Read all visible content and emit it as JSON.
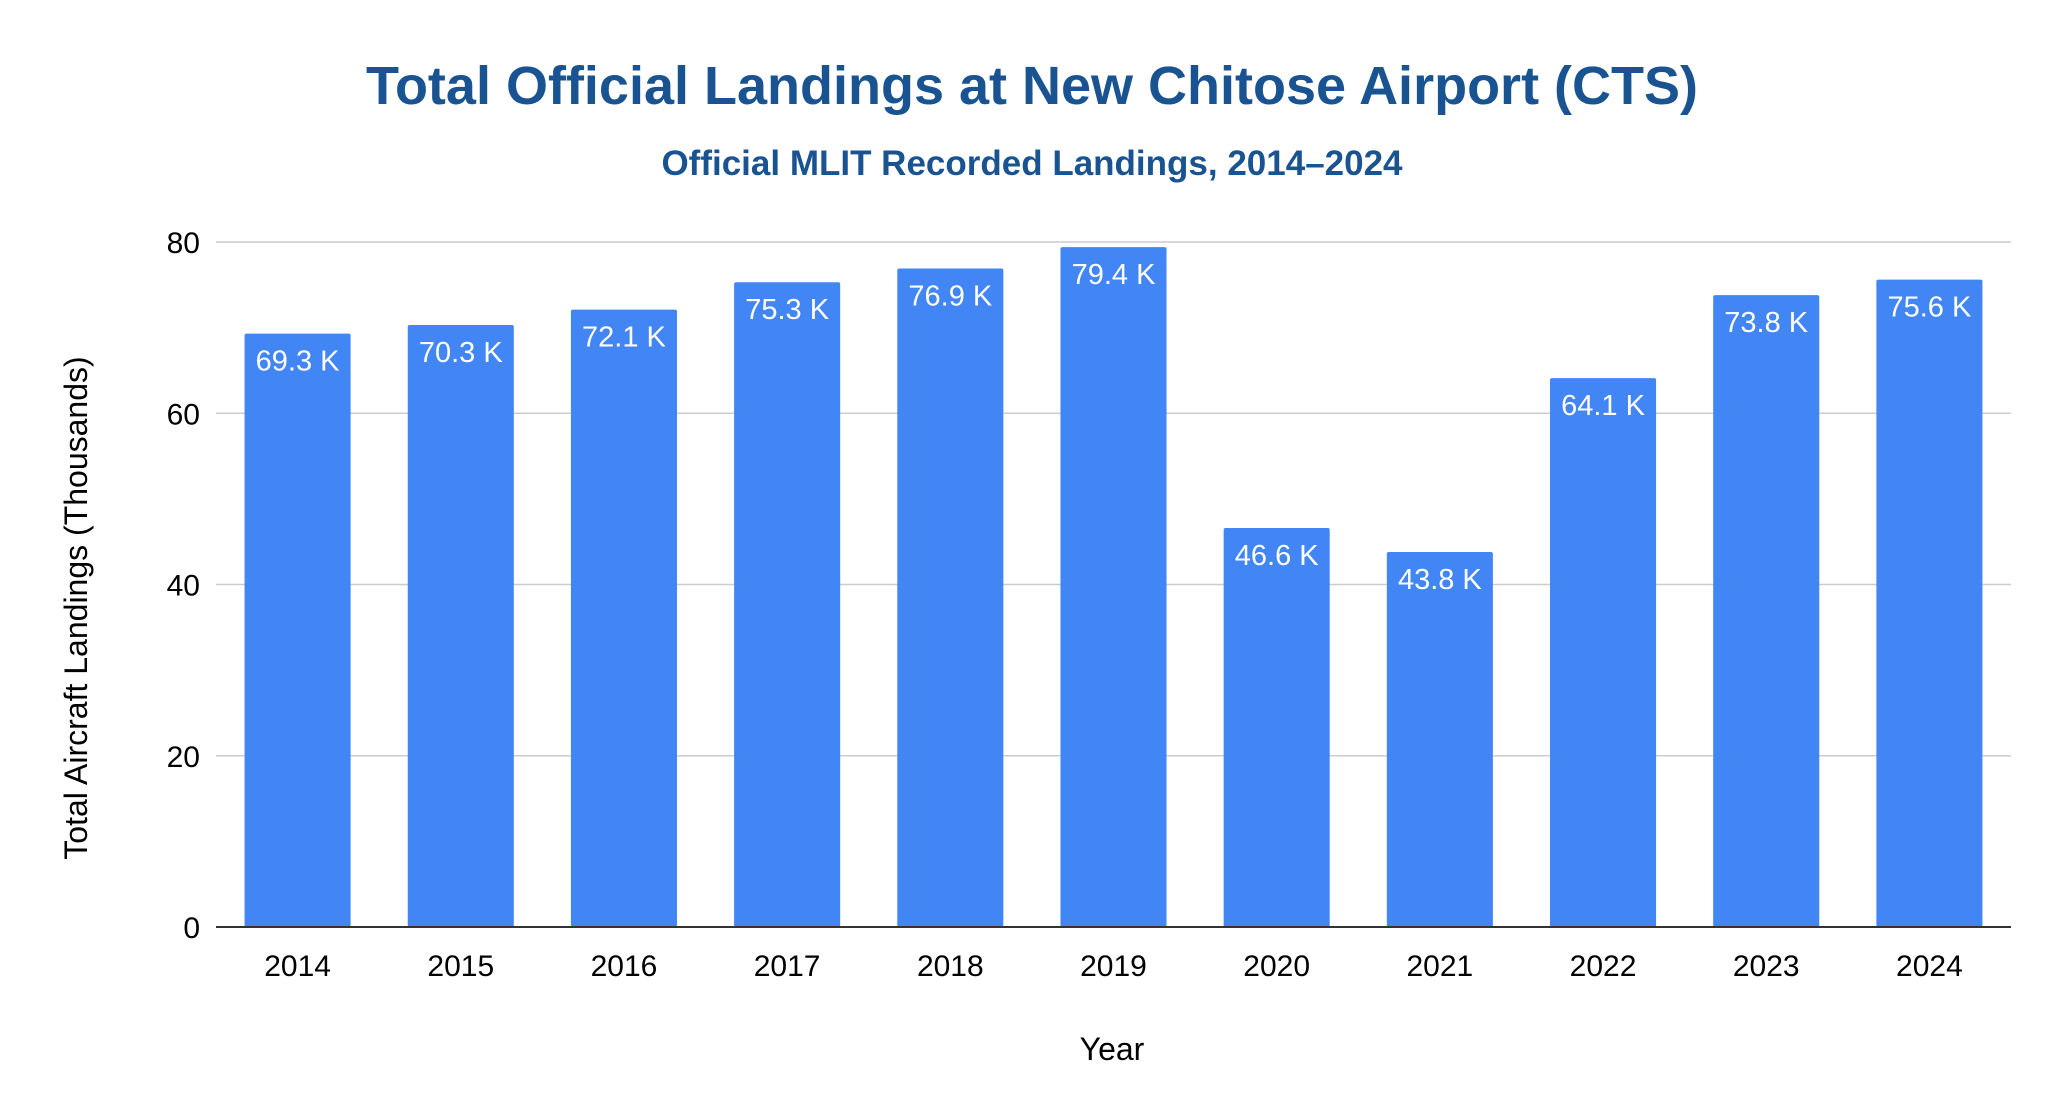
{
  "chart_data": {
    "type": "bar",
    "title": "Total Official Landings at New Chitose Airport (CTS)",
    "subtitle": "Official MLIT Recorded Landings, 2014–2024",
    "xlabel": "Year",
    "ylabel": "Total Aircraft Landings (Thousands)",
    "categories": [
      "2014",
      "2015",
      "2016",
      "2017",
      "2018",
      "2019",
      "2020",
      "2021",
      "2022",
      "2023",
      "2024"
    ],
    "values": [
      69.3,
      70.3,
      72.1,
      75.3,
      76.9,
      79.4,
      46.6,
      43.8,
      64.1,
      73.8,
      75.6
    ],
    "data_labels": [
      "69.3 K",
      "70.3 K",
      "72.1 K",
      "75.3 K",
      "76.9 K",
      "79.4 K",
      "46.6 K",
      "43.8 K",
      "64.1 K",
      "73.8 K",
      "75.6 K"
    ],
    "ylim": [
      0,
      80
    ],
    "yticks": [
      "0",
      "20",
      "40",
      "60",
      "80"
    ],
    "grid": true,
    "legend": "none",
    "bar_color": "#4285f4"
  }
}
